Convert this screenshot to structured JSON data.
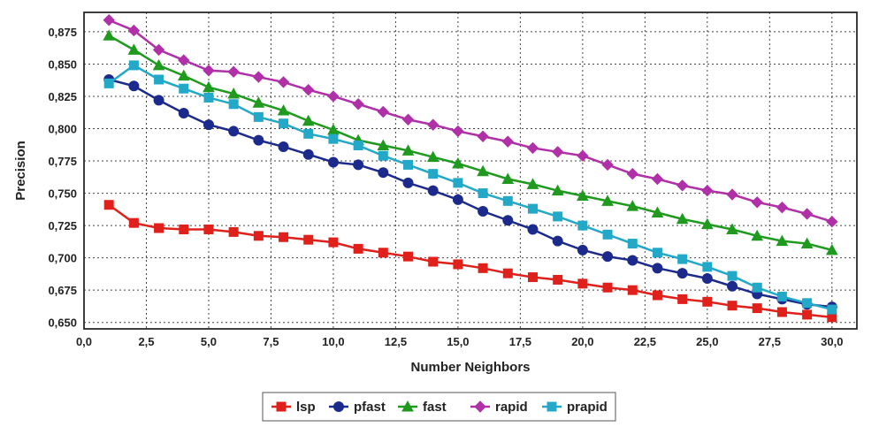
{
  "chart_data": {
    "type": "line",
    "xlabel": "Number Neighbors",
    "ylabel": "Precision",
    "xlim": [
      0,
      31
    ],
    "ylim": [
      0.645,
      0.89
    ],
    "xticks": [
      0,
      2.5,
      5,
      7.5,
      10,
      12.5,
      15,
      17.5,
      20,
      22.5,
      25,
      27.5,
      30
    ],
    "xtick_labels": [
      "0,0",
      "2,5",
      "5,0",
      "7,5",
      "10,0",
      "12,5",
      "15,0",
      "17,5",
      "20,0",
      "22,5",
      "25,0",
      "27,5",
      "30,0"
    ],
    "yticks": [
      0.65,
      0.675,
      0.7,
      0.725,
      0.75,
      0.775,
      0.8,
      0.825,
      0.85,
      0.875
    ],
    "ytick_labels": [
      "0,650",
      "0,675",
      "0,700",
      "0,725",
      "0,750",
      "0,775",
      "0,800",
      "0,825",
      "0,850",
      "0,875"
    ],
    "grid": true,
    "legend_position": "bottom",
    "x": [
      1,
      2,
      3,
      4,
      5,
      6,
      7,
      8,
      9,
      10,
      11,
      12,
      13,
      14,
      15,
      16,
      17,
      18,
      19,
      20,
      21,
      22,
      23,
      24,
      25,
      26,
      27,
      28,
      29,
      30
    ],
    "series": [
      {
        "name": "lsp",
        "color": "#e0201b",
        "marker": "square",
        "values": [
          0.741,
          0.727,
          0.723,
          0.722,
          0.722,
          0.72,
          0.717,
          0.716,
          0.714,
          0.712,
          0.707,
          0.704,
          0.701,
          0.697,
          0.695,
          0.692,
          0.688,
          0.685,
          0.683,
          0.68,
          0.677,
          0.675,
          0.671,
          0.668,
          0.666,
          0.663,
          0.661,
          0.658,
          0.656,
          0.654
        ]
      },
      {
        "name": "pfast",
        "color": "#1c2a8c",
        "marker": "circle",
        "values": [
          0.838,
          0.833,
          0.822,
          0.812,
          0.803,
          0.798,
          0.791,
          0.786,
          0.78,
          0.774,
          0.772,
          0.766,
          0.758,
          0.752,
          0.745,
          0.736,
          0.729,
          0.722,
          0.713,
          0.706,
          0.701,
          0.698,
          0.692,
          0.688,
          0.684,
          0.678,
          0.672,
          0.668,
          0.664,
          0.662
        ]
      },
      {
        "name": "fast",
        "color": "#1f9a1f",
        "marker": "triangle",
        "values": [
          0.872,
          0.861,
          0.849,
          0.841,
          0.832,
          0.827,
          0.82,
          0.814,
          0.806,
          0.799,
          0.791,
          0.787,
          0.783,
          0.778,
          0.773,
          0.767,
          0.761,
          0.757,
          0.752,
          0.748,
          0.744,
          0.74,
          0.735,
          0.73,
          0.726,
          0.722,
          0.717,
          0.713,
          0.711,
          0.706
        ]
      },
      {
        "name": "rapid",
        "color": "#b030a8",
        "marker": "diamond",
        "values": [
          0.884,
          0.876,
          0.861,
          0.853,
          0.845,
          0.844,
          0.84,
          0.836,
          0.83,
          0.825,
          0.819,
          0.813,
          0.807,
          0.803,
          0.798,
          0.794,
          0.79,
          0.785,
          0.782,
          0.779,
          0.772,
          0.765,
          0.761,
          0.756,
          0.752,
          0.749,
          0.743,
          0.739,
          0.734,
          0.728
        ]
      },
      {
        "name": "prapid",
        "color": "#23a8c8",
        "marker": "square",
        "values": [
          0.835,
          0.849,
          0.838,
          0.831,
          0.824,
          0.819,
          0.809,
          0.804,
          0.796,
          0.792,
          0.787,
          0.779,
          0.772,
          0.765,
          0.758,
          0.75,
          0.744,
          0.738,
          0.732,
          0.725,
          0.718,
          0.711,
          0.704,
          0.699,
          0.693,
          0.686,
          0.677,
          0.67,
          0.665,
          0.66
        ]
      }
    ]
  }
}
